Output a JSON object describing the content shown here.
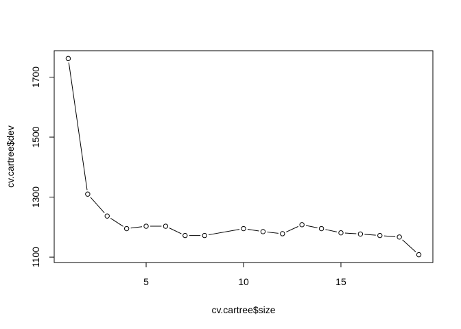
{
  "chart_data": {
    "type": "line",
    "title": "",
    "xlabel": "cv.cartree$size",
    "ylabel": "cv.cartree$dev",
    "x": [
      1,
      2,
      3,
      4,
      5,
      6,
      7,
      8,
      10,
      11,
      12,
      13,
      14,
      15,
      16,
      17,
      18,
      19
    ],
    "series": [
      {
        "values": [
          1762,
          1310,
          1237,
          1195,
          1203,
          1203,
          1172,
          1172,
          1195,
          1185,
          1178,
          1208,
          1195,
          1181,
          1177,
          1172,
          1167,
          1108
        ]
      }
    ],
    "xlim": [
      0.28,
      19.72
    ],
    "ylim": [
      1082,
      1788
    ],
    "xticks": [
      5,
      10,
      15
    ],
    "yticks": [
      1100,
      1300,
      1500,
      1700
    ],
    "grid": false,
    "line_color": "#000000",
    "marker_fill": "#ffffff",
    "marker_stroke": "#000000",
    "frame_color": "#000000",
    "background": "#ffffff"
  }
}
